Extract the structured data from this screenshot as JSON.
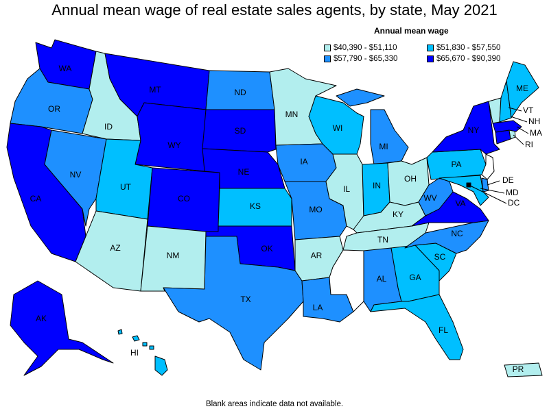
{
  "title": "Annual mean wage of real estate sales agents, by state, May 2021",
  "legend": {
    "title": "Annual mean wage",
    "items": [
      {
        "label": "$40,390 - $51,110",
        "color": "#b2eeee",
        "class": 1
      },
      {
        "label": "$51,830 - $57,550",
        "color": "#00bfff",
        "class": 2
      },
      {
        "label": "$57,790 - $65,330",
        "color": "#1e90ff",
        "class": 3
      },
      {
        "label": "$65,670 - $90,390",
        "color": "#0000ff",
        "class": 4
      }
    ]
  },
  "footnote": "Blank areas indicate data not available.",
  "states": {
    "WA": {
      "label": "WA",
      "class": 4
    },
    "OR": {
      "label": "OR",
      "class": 3
    },
    "CA": {
      "label": "CA",
      "class": 4
    },
    "NV": {
      "label": "NV",
      "class": 3
    },
    "ID": {
      "label": "ID",
      "class": 1
    },
    "MT": {
      "label": "MT",
      "class": 4
    },
    "WY": {
      "label": "WY",
      "class": 4
    },
    "UT": {
      "label": "UT",
      "class": 2
    },
    "AZ": {
      "label": "AZ",
      "class": 1
    },
    "CO": {
      "label": "CO",
      "class": 4
    },
    "NM": {
      "label": "NM",
      "class": 1
    },
    "ND": {
      "label": "ND",
      "class": 3
    },
    "SD": {
      "label": "SD",
      "class": 4
    },
    "NE": {
      "label": "NE",
      "class": 4
    },
    "KS": {
      "label": "KS",
      "class": 2
    },
    "OK": {
      "label": "OK",
      "class": 4
    },
    "TX": {
      "label": "TX",
      "class": 3
    },
    "MN": {
      "label": "MN",
      "class": 1
    },
    "IA": {
      "label": "IA",
      "class": 3
    },
    "MO": {
      "label": "MO",
      "class": 3
    },
    "AR": {
      "label": "AR",
      "class": 1
    },
    "LA": {
      "label": "LA",
      "class": 3
    },
    "WI": {
      "label": "WI",
      "class": 2
    },
    "IL": {
      "label": "IL",
      "class": 1
    },
    "MI": {
      "label": "MI",
      "class": 3
    },
    "IN": {
      "label": "IN",
      "class": 2
    },
    "OH": {
      "label": "OH",
      "class": 1
    },
    "KY": {
      "label": "KY",
      "class": 1
    },
    "TN": {
      "label": "TN",
      "class": 1
    },
    "MS": {
      "label": "",
      "class": 0
    },
    "AL": {
      "label": "AL",
      "class": 3
    },
    "GA": {
      "label": "GA",
      "class": 2
    },
    "FL": {
      "label": "FL",
      "class": 2
    },
    "SC": {
      "label": "SC",
      "class": 2
    },
    "NC": {
      "label": "NC",
      "class": 3
    },
    "VA": {
      "label": "VA",
      "class": 4
    },
    "WV": {
      "label": "WV",
      "class": 3
    },
    "PA": {
      "label": "PA",
      "class": 2
    },
    "NY": {
      "label": "NY",
      "class": 4
    },
    "ME": {
      "label": "ME",
      "class": 2
    },
    "VT": {
      "label": "VT",
      "class": 1
    },
    "NH": {
      "label": "NH",
      "class": 2
    },
    "MA": {
      "label": "MA",
      "class": 4
    },
    "RI": {
      "label": "RI",
      "class": 1
    },
    "CT": {
      "label": "",
      "class": 4
    },
    "NJ": {
      "label": "",
      "class": 0
    },
    "DE": {
      "label": "DE",
      "class": 3
    },
    "MD": {
      "label": "MD",
      "class": 2
    },
    "DC": {
      "label": "DC",
      "class": 4
    },
    "AK": {
      "label": "AK",
      "class": 4
    },
    "HI": {
      "label": "HI",
      "class": 2
    },
    "PR": {
      "label": "PR",
      "class": 1
    }
  }
}
